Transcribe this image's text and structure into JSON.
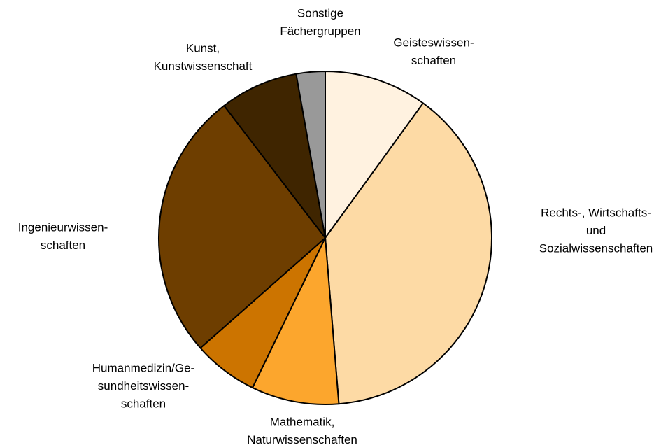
{
  "chart_data": {
    "type": "pie",
    "categories": [
      [
        "Geisteswissen-",
        "schaften"
      ],
      [
        "Rechts-, Wirtschafts-",
        "und",
        "Sozialwissenschaften"
      ],
      [
        "Mathematik,",
        "Naturwissenschaften"
      ],
      [
        "Humanmedizin/Ge-",
        "sundheitswissen-",
        "schaften"
      ],
      [
        "Ingenieurwissen-",
        "schaften"
      ],
      [
        "Kunst,",
        "Kunstwissenschaft"
      ],
      [
        "Sonstige",
        "Fächergruppen"
      ]
    ],
    "values": [
      10,
      38.7,
      8.5,
      6.3,
      26.1,
      7.6,
      2.8
    ],
    "colors": [
      "#fff2e0",
      "#fddaa5",
      "#fca62d",
      "#cc7400",
      "#6e3e00",
      "#3f2500",
      "#999999"
    ]
  }
}
